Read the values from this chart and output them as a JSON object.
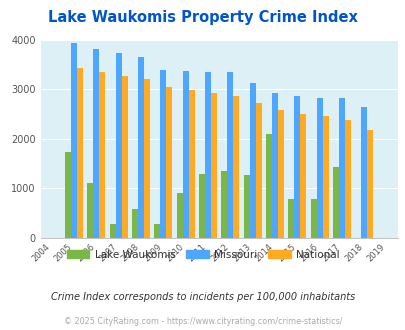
{
  "title": "Lake Waukomis Property Crime Index",
  "years": [
    "2004",
    "2005",
    "2006",
    "2007",
    "2008",
    "2009",
    "2010",
    "2011",
    "2012",
    "2013",
    "2014",
    "2015",
    "2016",
    "2017",
    "2018",
    "2019"
  ],
  "data_years": [
    "2005",
    "2006",
    "2007",
    "2008",
    "2009",
    "2010",
    "2011",
    "2012",
    "2013",
    "2014",
    "2015",
    "2016",
    "2017",
    "2018"
  ],
  "lake_waukomis": [
    1720,
    1100,
    270,
    570,
    270,
    900,
    1280,
    1350,
    1270,
    2100,
    780,
    780,
    1430,
    0
  ],
  "missouri": [
    3940,
    3820,
    3720,
    3640,
    3380,
    3360,
    3340,
    3340,
    3130,
    2920,
    2870,
    2820,
    2830,
    2640
  ],
  "national": [
    3420,
    3340,
    3270,
    3200,
    3040,
    2980,
    2920,
    2870,
    2720,
    2580,
    2500,
    2450,
    2380,
    2170
  ],
  "lw_color": "#7ab648",
  "mo_color": "#4da6ff",
  "na_color": "#ffaa22",
  "bg_color": "#ddf0f5",
  "title_color": "#0055cc",
  "ylim": [
    0,
    4000
  ],
  "yticks": [
    0,
    1000,
    2000,
    3000,
    4000
  ],
  "subtitle": "Crime Index corresponds to incidents per 100,000 inhabitants",
  "footer": "© 2025 CityRating.com - https://www.cityrating.com/crime-statistics/",
  "bar_width": 0.27
}
